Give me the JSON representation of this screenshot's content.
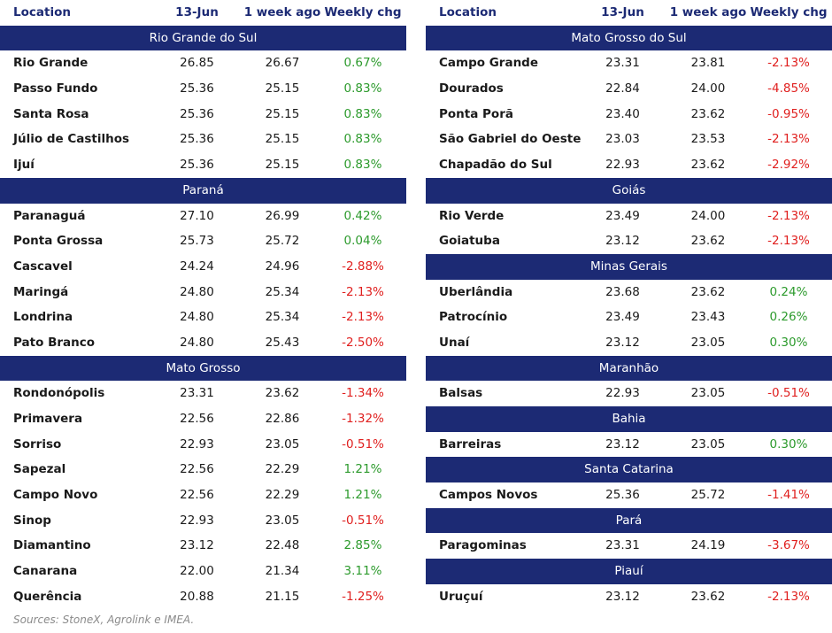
{
  "tables": [
    {
      "columns": [
        "Location",
        "13-Jun",
        "1 week ago",
        "Weekly chg"
      ],
      "groups": [
        {
          "title": "Rio Grande do Sul",
          "rows": [
            [
              "Rio Grande",
              "26.85",
              "26.67",
              "0.67%"
            ],
            [
              "Passo Fundo",
              "25.36",
              "25.15",
              "0.83%"
            ],
            [
              "Santa Rosa",
              "25.36",
              "25.15",
              "0.83%"
            ],
            [
              "Júlio de Castilhos",
              "25.36",
              "25.15",
              "0.83%"
            ],
            [
              "Ijuí",
              "25.36",
              "25.15",
              "0.83%"
            ]
          ]
        },
        {
          "title": "Paraná",
          "rows": [
            [
              "Paranaguá",
              "27.10",
              "26.99",
              "0.42%"
            ],
            [
              "Ponta Grossa",
              "25.73",
              "25.72",
              "0.04%"
            ],
            [
              "Cascavel",
              "24.24",
              "24.96",
              "-2.88%"
            ],
            [
              "Maringá",
              "24.80",
              "25.34",
              "-2.13%"
            ],
            [
              "Londrina",
              "24.80",
              "25.34",
              "-2.13%"
            ],
            [
              "Pato Branco",
              "24.80",
              "25.43",
              "-2.50%"
            ]
          ]
        },
        {
          "title": "Mato Grosso",
          "rows": [
            [
              "Rondonópolis",
              "23.31",
              "23.62",
              "-1.34%"
            ],
            [
              "Primavera",
              "22.56",
              "22.86",
              "-1.32%"
            ],
            [
              "Sorriso",
              "22.93",
              "23.05",
              "-0.51%"
            ],
            [
              "Sapezal",
              "22.56",
              "22.29",
              "1.21%"
            ],
            [
              "Campo Novo",
              "22.56",
              "22.29",
              "1.21%"
            ],
            [
              "Sinop",
              "22.93",
              "23.05",
              "-0.51%"
            ],
            [
              "Diamantino",
              "23.12",
              "22.48",
              "2.85%"
            ],
            [
              "Canarana",
              "22.00",
              "21.34",
              "3.11%"
            ],
            [
              "Querência",
              "20.88",
              "21.15",
              "-1.25%"
            ]
          ]
        }
      ]
    },
    {
      "columns": [
        "Location",
        "13-Jun",
        "1 week ago",
        "Weekly chg"
      ],
      "groups": [
        {
          "title": "Mato Grosso do Sul",
          "rows": [
            [
              "Campo Grande",
              "23.31",
              "23.81",
              "-2.13%"
            ],
            [
              "Dourados",
              "22.84",
              "24.00",
              "-4.85%"
            ],
            [
              "Ponta Porã",
              "23.40",
              "23.62",
              "-0.95%"
            ],
            [
              "São Gabriel do Oeste",
              "23.03",
              "23.53",
              "-2.13%"
            ],
            [
              "Chapadão do Sul",
              "22.93",
              "23.62",
              "-2.92%"
            ]
          ]
        },
        {
          "title": "Goiás",
          "rows": [
            [
              "Rio Verde",
              "23.49",
              "24.00",
              "-2.13%"
            ],
            [
              "Goiatuba",
              "23.12",
              "23.62",
              "-2.13%"
            ]
          ]
        },
        {
          "title": "Minas Gerais",
          "rows": [
            [
              "Uberlândia",
              "23.68",
              "23.62",
              "0.24%"
            ],
            [
              "Patrocínio",
              "23.49",
              "23.43",
              "0.26%"
            ],
            [
              "Unaí",
              "23.12",
              "23.05",
              "0.30%"
            ]
          ]
        },
        {
          "title": "Maranhão",
          "rows": [
            [
              "Balsas",
              "22.93",
              "23.05",
              "-0.51%"
            ]
          ]
        },
        {
          "title": "Bahia",
          "rows": [
            [
              "Barreiras",
              "23.12",
              "23.05",
              "0.30%"
            ]
          ]
        },
        {
          "title": "Santa Catarina",
          "rows": [
            [
              "Campos Novos",
              "25.36",
              "25.72",
              "-1.41%"
            ]
          ]
        },
        {
          "title": "Pará",
          "rows": [
            [
              "Paragominas",
              "23.31",
              "24.19",
              "-3.67%"
            ]
          ]
        },
        {
          "title": "Piauí",
          "rows": [
            [
              "Uruçuí",
              "23.12",
              "23.62",
              "-2.13%"
            ]
          ]
        }
      ]
    }
  ],
  "source": "Sources: StoneX, Agrolink e IMEA."
}
